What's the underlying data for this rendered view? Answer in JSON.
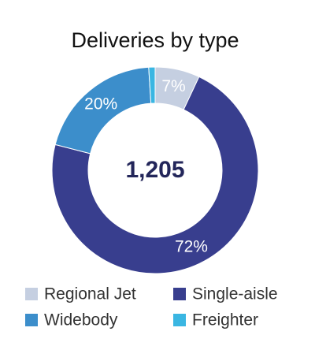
{
  "chart_data": {
    "type": "donut",
    "title": "Deliveries by type",
    "center_label": "1,205",
    "categories": [
      "Regional Jet",
      "Single-aisle",
      "Widebody",
      "Freighter"
    ],
    "values": [
      7,
      72,
      20,
      1
    ],
    "value_labels": [
      "7%",
      "72%",
      "20%",
      null
    ],
    "colors": [
      "#c5cfe1",
      "#383e8e",
      "#3c8ecb",
      "#3ab6e2"
    ],
    "legend": "bottom"
  }
}
